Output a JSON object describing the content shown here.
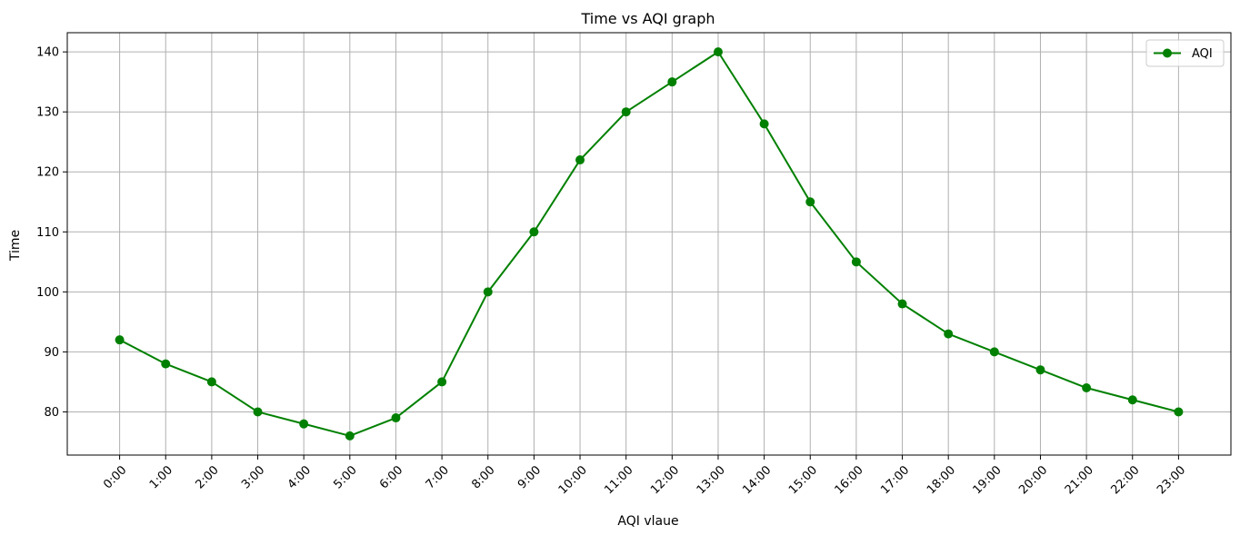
{
  "chart_data": {
    "type": "line",
    "title": "Time vs AQI graph",
    "xlabel": "AQI vlaue",
    "ylabel": "Time",
    "categories": [
      "0:00",
      "1:00",
      "2:00",
      "3:00",
      "4:00",
      "5:00",
      "6:00",
      "7:00",
      "8:00",
      "9:00",
      "10:00",
      "11:00",
      "12:00",
      "13:00",
      "14:00",
      "15:00",
      "16:00",
      "17:00",
      "18:00",
      "19:00",
      "20:00",
      "21:00",
      "22:00",
      "23:00"
    ],
    "series": [
      {
        "name": "AQI",
        "color": "#008000",
        "marker": "circle",
        "values": [
          92,
          88,
          85,
          80,
          78,
          76,
          79,
          85,
          100,
          110,
          122,
          130,
          135,
          140,
          128,
          115,
          105,
          98,
          93,
          90,
          87,
          84,
          82,
          80
        ]
      }
    ],
    "yticks": [
      80,
      90,
      100,
      110,
      120,
      130,
      140
    ],
    "ylim": [
      72.8,
      143.2
    ],
    "grid": true,
    "legend_position": "top-right",
    "xtick_rotation": -45
  }
}
